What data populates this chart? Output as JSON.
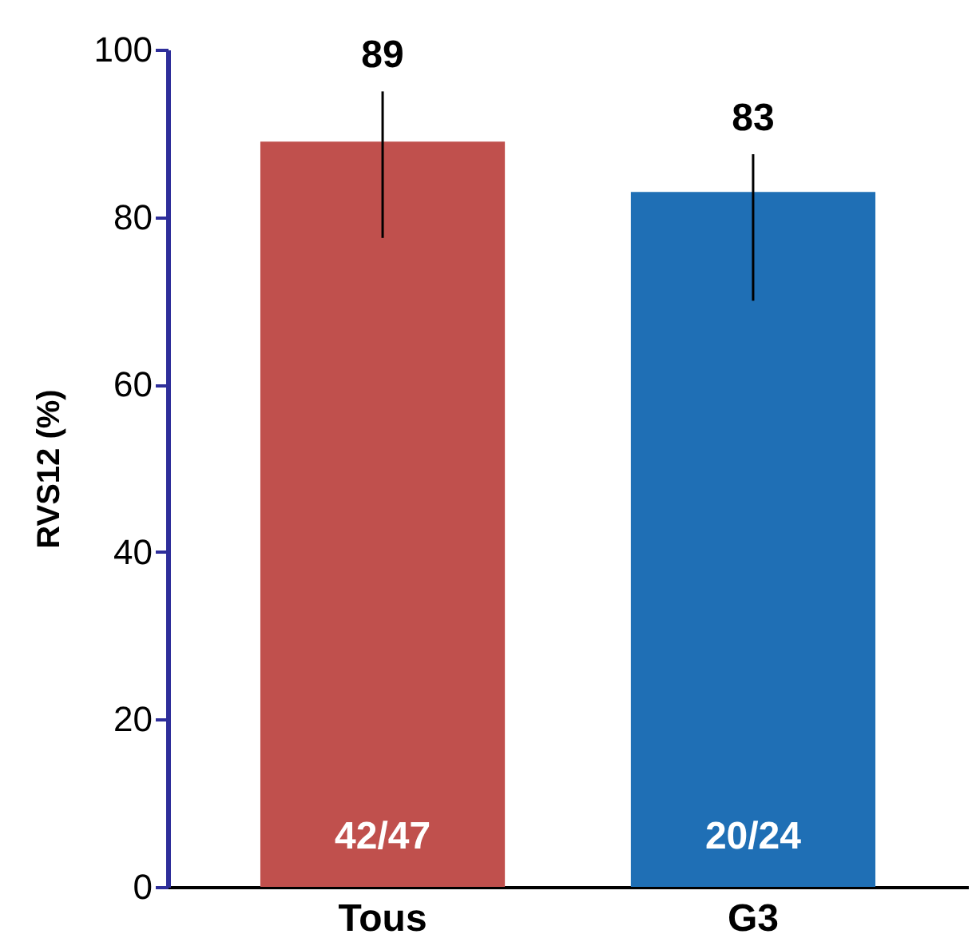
{
  "chart_data": {
    "type": "bar",
    "ylabel": "RVS12 (%)",
    "categories": [
      "Tous",
      "G3"
    ],
    "values": [
      89,
      83
    ],
    "colors": [
      "#c0504d",
      "#1f6fb5"
    ],
    "errors": [
      [
        77.5,
        95
      ],
      [
        70,
        87.5
      ]
    ],
    "data_labels": true,
    "annotations": [
      "42/47",
      "20/24"
    ],
    "ylim": [
      0,
      100
    ],
    "yticks": [
      0,
      20,
      40,
      60,
      80,
      100
    ],
    "grid": false
  }
}
